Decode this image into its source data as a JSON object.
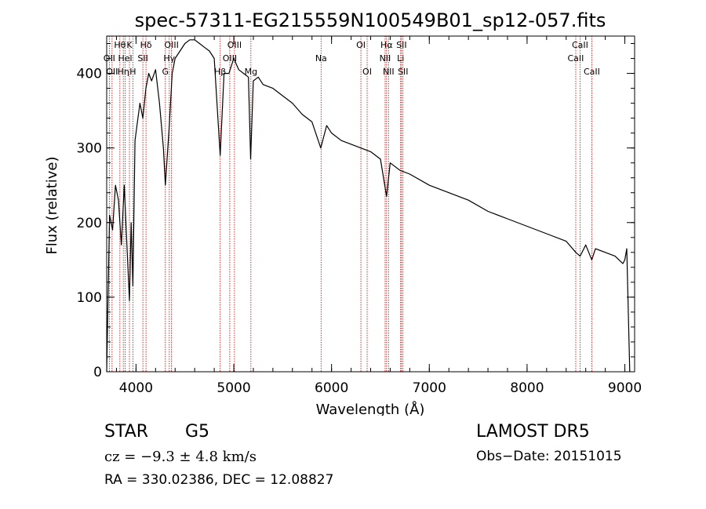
{
  "chart_data": {
    "type": "line",
    "title": "spec-57311-EG215559N100549B01_sp12-057.fits",
    "xlabel": "Wavelength (Å)",
    "ylabel": "Flux (relative)",
    "xlim": [
      3700,
      9100
    ],
    "ylim": [
      0,
      450
    ],
    "xticks": [
      4000,
      5000,
      6000,
      7000,
      8000,
      9000
    ],
    "yticks": [
      0,
      100,
      200,
      300,
      400
    ],
    "series": [
      {
        "x": [
          3700,
          3730,
          3760,
          3790,
          3820,
          3850,
          3880,
          3910,
          3933,
          3950,
          3968,
          3990,
          4010,
          4040,
          4070,
          4101,
          4130,
          4160,
          4200,
          4240,
          4280,
          4300,
          4340,
          4370,
          4400,
          4450,
          4500,
          4550,
          4600,
          4650,
          4700,
          4750,
          4800,
          4861,
          4900,
          4950,
          5000,
          5050,
          5100,
          5150,
          5172,
          5200,
          5250,
          5300,
          5400,
          5500,
          5600,
          5700,
          5800,
          5890,
          5950,
          6000,
          6100,
          6200,
          6300,
          6400,
          6500,
          6563,
          6600,
          6700,
          6800,
          7000,
          7200,
          7400,
          7600,
          7800,
          8000,
          8200,
          8400,
          8498,
          8542,
          8600,
          8662,
          8700,
          8800,
          8900,
          8980,
          9000,
          9020,
          9050
        ],
        "y": [
          0,
          210,
          190,
          250,
          230,
          170,
          250,
          160,
          95,
          200,
          115,
          310,
          330,
          360,
          340,
          380,
          400,
          390,
          405,
          360,
          300,
          250,
          330,
          400,
          420,
          430,
          440,
          445,
          445,
          440,
          435,
          430,
          420,
          290,
          400,
          400,
          420,
          405,
          400,
          395,
          285,
          390,
          395,
          385,
          380,
          370,
          360,
          345,
          335,
          300,
          330,
          320,
          310,
          305,
          300,
          295,
          285,
          235,
          280,
          270,
          265,
          250,
          240,
          230,
          215,
          205,
          195,
          185,
          175,
          160,
          155,
          170,
          150,
          165,
          160,
          155,
          145,
          150,
          165,
          0
        ]
      }
    ],
    "lines": [
      {
        "wl": 3835,
        "label": "Hθ",
        "row": 0
      },
      {
        "wl": 3889,
        "label": "Hel",
        "row": 1
      },
      {
        "wl": 3933,
        "label": "K",
        "row": 0
      },
      {
        "wl": 3968,
        "label": "H",
        "row": 2
      },
      {
        "wl": 3727,
        "label": "OII",
        "row": 1
      },
      {
        "wl": 3870,
        "label": "Hη",
        "row": 2
      },
      {
        "wl": 3755,
        "label": "OII",
        "row": 2
      },
      {
        "wl": 4070,
        "label": "SII",
        "row": 1
      },
      {
        "wl": 4102,
        "label": "Hδ",
        "row": 0
      },
      {
        "wl": 4300,
        "label": "G",
        "row": 2
      },
      {
        "wl": 4340,
        "label": "Hγ",
        "row": 1
      },
      {
        "wl": 4363,
        "label": "OIII",
        "row": 0
      },
      {
        "wl": 4861,
        "label": "Hβ",
        "row": 2
      },
      {
        "wl": 4959,
        "label": "OIII",
        "row": 1
      },
      {
        "wl": 5007,
        "label": "OIII",
        "row": 0
      },
      {
        "wl": 5175,
        "label": "Mg",
        "row": 2
      },
      {
        "wl": 5893,
        "label": "Na",
        "row": 1
      },
      {
        "wl": 6300,
        "label": "OI",
        "row": 0
      },
      {
        "wl": 6364,
        "label": "OI",
        "row": 2
      },
      {
        "wl": 6548,
        "label": "NII",
        "row": 1
      },
      {
        "wl": 6563,
        "label": "Hα",
        "row": 0
      },
      {
        "wl": 6583,
        "label": "NII",
        "row": 2
      },
      {
        "wl": 6707,
        "label": "Li",
        "row": 1
      },
      {
        "wl": 6716,
        "label": "SII",
        "row": 0
      },
      {
        "wl": 6731,
        "label": "SII",
        "row": 2
      },
      {
        "wl": 8498,
        "label": "CaII",
        "row": 1
      },
      {
        "wl": 8542,
        "label": "CaII",
        "row": 0
      },
      {
        "wl": 8662,
        "label": "CaII",
        "row": 2
      }
    ]
  },
  "info": {
    "obj_class": "STAR",
    "subclass": "G5",
    "survey": "LAMOST  DR5",
    "cz": "cz = −9.3 ± 4.8 km/s",
    "obs_date": "Obs−Date: 20151015",
    "radec": "RA = 330.02386, DEC =  12.08827"
  },
  "colors": {
    "spectrum": "#000000",
    "line_marker": "#cc0000",
    "axis": "#000000"
  }
}
